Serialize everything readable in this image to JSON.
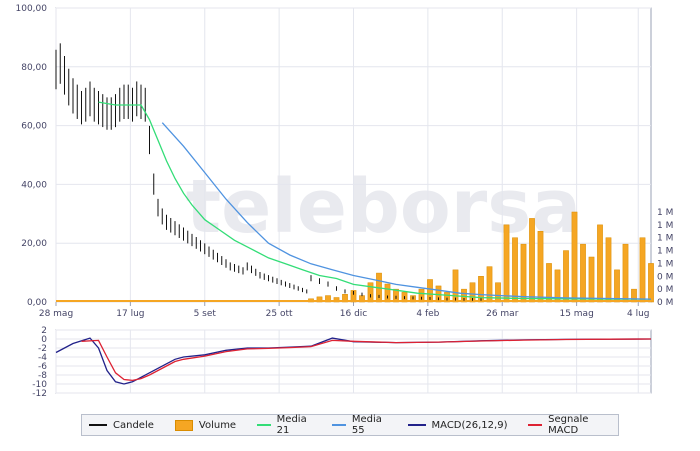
{
  "chart_data": [
    {
      "type": "line",
      "panel": "price",
      "watermark": "teleborsa",
      "y_left": {
        "ticks": [
          "100,00",
          "80,00",
          "60,00",
          "40,00",
          "20,00",
          "0,00"
        ],
        "range": [
          0,
          100
        ]
      },
      "y_right": {
        "ticks": [
          "1 M",
          "1 M",
          "1 M",
          "1 M",
          "1 M",
          "0 M",
          "0 M",
          "0 M"
        ]
      },
      "x_ticks": [
        "28 mag",
        "17 lug",
        "5 set",
        "25 ott",
        "16 dic",
        "4 feb",
        "26 mar",
        "15 mag",
        "4 lug"
      ],
      "x_range": [
        0,
        140
      ],
      "grid": true,
      "series": [
        {
          "name": "Candele",
          "color": "#111111",
          "x": [
            0,
            1,
            2,
            3,
            4,
            5,
            6,
            7,
            8,
            9,
            10,
            11,
            12,
            13,
            14,
            15,
            16,
            17,
            18,
            19,
            20,
            21,
            22,
            23,
            24,
            25,
            26,
            27,
            28,
            29,
            30,
            31,
            32,
            33,
            34,
            35,
            36,
            37,
            38,
            39,
            40,
            41,
            42,
            43,
            44,
            45,
            46,
            47,
            48,
            49,
            50,
            51,
            52,
            53,
            54,
            55,
            56,
            57,
            58,
            59,
            60,
            62,
            64,
            66,
            68,
            70,
            72,
            74,
            76,
            78,
            80,
            82,
            84,
            86,
            88,
            90,
            92,
            94,
            96,
            98,
            100
          ],
          "values": [
            79,
            81,
            77,
            73,
            70,
            68,
            66,
            67,
            69,
            67,
            66,
            65,
            64,
            64,
            65,
            67,
            68,
            68,
            67,
            69,
            68,
            67,
            55,
            40,
            32,
            29,
            27,
            26,
            25,
            24,
            23,
            22,
            21,
            20,
            19,
            18,
            17,
            16,
            15,
            14,
            13,
            12,
            11.5,
            11,
            10.5,
            12,
            11,
            10,
            9,
            8.5,
            8,
            7.5,
            7,
            6.5,
            6,
            5.5,
            5,
            4.5,
            4,
            3.5,
            8,
            7,
            6,
            4.5,
            3.5,
            3,
            2.5,
            2,
            1.8,
            1.6,
            1.5,
            1.4,
            1.3,
            1.2,
            1.1,
            1.0,
            0.9,
            0.9,
            0.8,
            0.8,
            0.8
          ]
        },
        {
          "name": "Media 21",
          "color": "#33dd77",
          "x": [
            10,
            14,
            18,
            20,
            22,
            24,
            26,
            28,
            30,
            32,
            35,
            38,
            42,
            46,
            50,
            54,
            58,
            62,
            66,
            70,
            75,
            80,
            85,
            90,
            95,
            100,
            110,
            120,
            130,
            140
          ],
          "values": [
            68,
            67,
            67,
            67,
            62,
            55,
            48,
            42,
            37,
            33,
            28,
            25,
            21,
            18,
            15,
            13,
            11,
            9,
            8,
            6,
            5,
            4,
            3,
            2.5,
            2,
            1.5,
            1.2,
            1.1,
            1.0,
            1.0
          ]
        },
        {
          "name": "Media 55",
          "color": "#4f93e0",
          "x": [
            25,
            30,
            35,
            40,
            45,
            50,
            55,
            60,
            65,
            70,
            75,
            80,
            85,
            90,
            95,
            100,
            110,
            120,
            130,
            140
          ],
          "values": [
            61,
            53,
            44,
            35,
            27,
            20,
            16,
            13,
            11,
            9,
            7.5,
            6,
            5,
            4,
            3,
            2.5,
            1.8,
            1.4,
            1.2,
            1.0
          ]
        }
      ],
      "volume": {
        "name": "Volume",
        "color": "#f5a623",
        "x": [
          60,
          62,
          64,
          66,
          68,
          70,
          72,
          74,
          76,
          78,
          80,
          82,
          84,
          86,
          88,
          90,
          92,
          94,
          96,
          98,
          100,
          102,
          104,
          106,
          108,
          110,
          112,
          114,
          116,
          118,
          120,
          122,
          124,
          126,
          128,
          130,
          132,
          134,
          136,
          138,
          140
        ],
        "values": [
          0.05,
          0.08,
          0.1,
          0.07,
          0.12,
          0.18,
          0.1,
          0.3,
          0.45,
          0.28,
          0.2,
          0.15,
          0.1,
          0.2,
          0.35,
          0.25,
          0.15,
          0.5,
          0.2,
          0.3,
          0.4,
          0.55,
          0.3,
          1.2,
          1.0,
          0.9,
          1.3,
          1.1,
          0.6,
          0.5,
          0.8,
          1.4,
          0.9,
          0.7,
          1.2,
          1.0,
          0.5,
          0.9,
          0.2,
          1.0,
          0.6
        ]
      }
    },
    {
      "type": "line",
      "panel": "macd",
      "y_ticks": [
        "2",
        "0",
        "-2",
        "-4",
        "-6",
        "-8",
        "-10",
        "-12"
      ],
      "y_range": [
        -12,
        2
      ],
      "grid": true,
      "series": [
        {
          "name": "MACD(26,12,9)",
          "color": "#22228a",
          "x": [
            0,
            4,
            8,
            10,
            12,
            14,
            16,
            18,
            20,
            22,
            24,
            26,
            28,
            30,
            35,
            40,
            45,
            50,
            55,
            60,
            65,
            70,
            80,
            90,
            100,
            110,
            120,
            130,
            140
          ],
          "values": [
            -3,
            -1,
            0.2,
            -2,
            -7,
            -9.5,
            -10,
            -9.5,
            -8.5,
            -7.5,
            -6.5,
            -5.5,
            -4.5,
            -4,
            -3.5,
            -2.5,
            -2,
            -2,
            -1.8,
            -1.6,
            0.2,
            -0.6,
            -0.8,
            -0.7,
            -0.4,
            -0.2,
            -0.1,
            -0.05,
            0
          ]
        },
        {
          "name": "Segnale MACD",
          "color": "#dd2233",
          "x": [
            6,
            10,
            12,
            14,
            16,
            18,
            20,
            22,
            24,
            26,
            28,
            30,
            35,
            40,
            45,
            50,
            55,
            60,
            65,
            70,
            80,
            90,
            100,
            110,
            120,
            130,
            140
          ],
          "values": [
            -0.5,
            -0.3,
            -4,
            -7.5,
            -9,
            -9.2,
            -8.8,
            -8,
            -7,
            -6,
            -5,
            -4.5,
            -3.8,
            -2.8,
            -2.2,
            -2.1,
            -1.9,
            -1.7,
            -0.3,
            -0.5,
            -0.8,
            -0.7,
            -0.45,
            -0.25,
            -0.12,
            -0.05,
            0
          ]
        }
      ]
    }
  ],
  "legend": [
    {
      "label": "Candele",
      "color": "#111111"
    },
    {
      "label": "Volume",
      "color": "#f5a623"
    },
    {
      "label": "Media 21",
      "color": "#33dd77"
    },
    {
      "label": "Media 55",
      "color": "#4f93e0"
    },
    {
      "label": "MACD(26,12,9)",
      "color": "#22228a"
    },
    {
      "label": "Segnale MACD",
      "color": "#dd2233"
    }
  ]
}
